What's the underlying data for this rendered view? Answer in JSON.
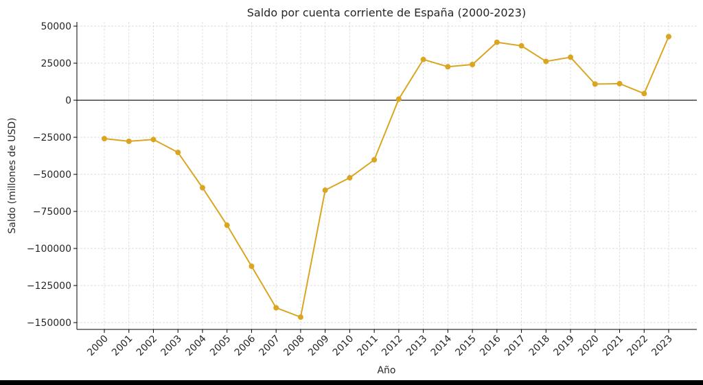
{
  "chart_data": {
    "type": "line",
    "title": "Saldo por cuenta corriente de España (2000-2023)",
    "xlabel": "Año",
    "ylabel": "Saldo (millones de USD)",
    "categories": [
      "2000",
      "2001",
      "2002",
      "2003",
      "2004",
      "2005",
      "2006",
      "2007",
      "2008",
      "2009",
      "2010",
      "2011",
      "2012",
      "2013",
      "2014",
      "2015",
      "2016",
      "2017",
      "2018",
      "2019",
      "2020",
      "2021",
      "2022",
      "2023"
    ],
    "values": [
      -25900,
      -27700,
      -26500,
      -35200,
      -59000,
      -84300,
      -112000,
      -140000,
      -146300,
      -60700,
      -52300,
      -40200,
      800,
      27500,
      22600,
      24100,
      39100,
      36700,
      26200,
      29000,
      10900,
      11200,
      4500,
      42900
    ],
    "yticks": [
      50000,
      25000,
      0,
      -25000,
      -50000,
      -75000,
      -100000,
      -125000,
      -150000
    ],
    "ytick_labels": [
      "50000",
      "25000",
      "0",
      "−25000",
      "−50000",
      "−75000",
      "−100000",
      "−125000",
      "−150000"
    ],
    "ylim": [
      -154600,
      52800
    ],
    "grid": true,
    "zero_line": true,
    "line_color": "#DAA520"
  }
}
